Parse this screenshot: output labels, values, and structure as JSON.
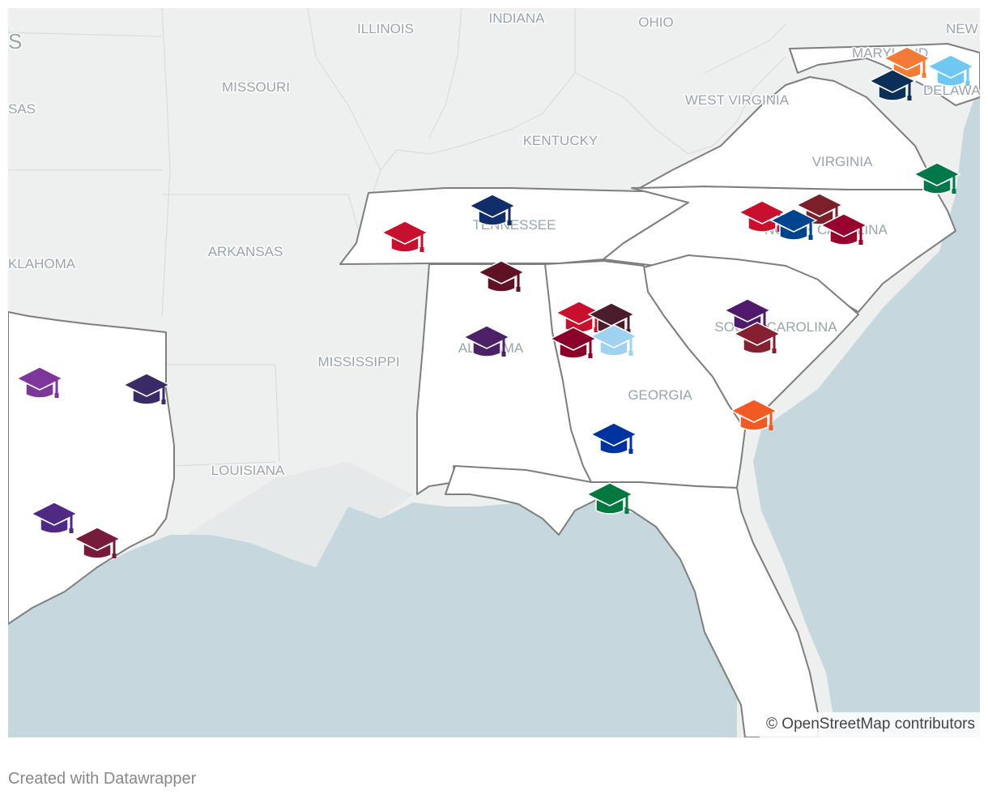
{
  "map": {
    "attribution": "© OpenStreetMap contributors",
    "colors": {
      "water": "#c6d8de",
      "land_background": "#eef0f0",
      "highlight_state_fill": "#ffffff",
      "highlight_state_border": "#7e7e7e",
      "state_label": "#9aa4ad"
    },
    "state_labels": [
      {
        "name": "ILLINOIS"
      },
      {
        "name": "INDIANA"
      },
      {
        "name": "OHIO"
      },
      {
        "name": "NEW"
      },
      {
        "name": "MARYLAND"
      },
      {
        "name": "DELAWA"
      },
      {
        "name": "MISSOURI"
      },
      {
        "name": "WEST VIRGINIA"
      },
      {
        "name": "KENTUCKY"
      },
      {
        "name": "VIRGINIA"
      },
      {
        "name": "SAS"
      },
      {
        "name": "S"
      },
      {
        "name": "TENNESSEE"
      },
      {
        "name": "NORTH CAROLINA"
      },
      {
        "name": "ARKANSAS"
      },
      {
        "name": "KLAHOMA"
      },
      {
        "name": "SOUTH CAROLINA"
      },
      {
        "name": "ALABAMA"
      },
      {
        "name": "MISSISSIPPI"
      },
      {
        "name": "GEORGIA"
      },
      {
        "name": "LOUISIANA"
      }
    ],
    "markers": [
      {
        "icon": "graduation-cap-icon",
        "color": "#f47b35"
      },
      {
        "icon": "graduation-cap-icon",
        "color": "#6fc8f2"
      },
      {
        "icon": "graduation-cap-icon",
        "color": "#0b2f58"
      },
      {
        "icon": "graduation-cap-icon",
        "color": "#00784a"
      },
      {
        "icon": "graduation-cap-icon",
        "color": "#112e6b"
      },
      {
        "icon": "graduation-cap-icon",
        "color": "#c8102e"
      },
      {
        "icon": "graduation-cap-icon",
        "color": "#c8102e"
      },
      {
        "icon": "graduation-cap-icon",
        "color": "#7b1f2a"
      },
      {
        "icon": "graduation-cap-icon",
        "color": "#00448e"
      },
      {
        "icon": "graduation-cap-icon",
        "color": "#98002e"
      },
      {
        "icon": "graduation-cap-icon",
        "color": "#5e1224"
      },
      {
        "icon": "graduation-cap-icon",
        "color": "#c8102e"
      },
      {
        "icon": "graduation-cap-icon",
        "color": "#4b1d2c"
      },
      {
        "icon": "graduation-cap-icon",
        "color": "#8b0028"
      },
      {
        "icon": "graduation-cap-icon",
        "color": "#9ed2f0"
      },
      {
        "icon": "graduation-cap-icon",
        "color": "#4c2168"
      },
      {
        "icon": "graduation-cap-icon",
        "color": "#4f1a6b"
      },
      {
        "icon": "graduation-cap-icon",
        "color": "#861f2f"
      },
      {
        "icon": "graduation-cap-icon",
        "color": "#f15a22"
      },
      {
        "icon": "graduation-cap-icon",
        "color": "#0033a0"
      },
      {
        "icon": "graduation-cap-icon",
        "color": "#00783e"
      },
      {
        "icon": "graduation-cap-icon",
        "color": "#7d3699"
      },
      {
        "icon": "graduation-cap-icon",
        "color": "#3a2b66"
      },
      {
        "icon": "graduation-cap-icon",
        "color": "#4e2a84"
      },
      {
        "icon": "graduation-cap-icon",
        "color": "#781a3c"
      }
    ]
  },
  "footer": {
    "credit": "Created with Datawrapper"
  }
}
